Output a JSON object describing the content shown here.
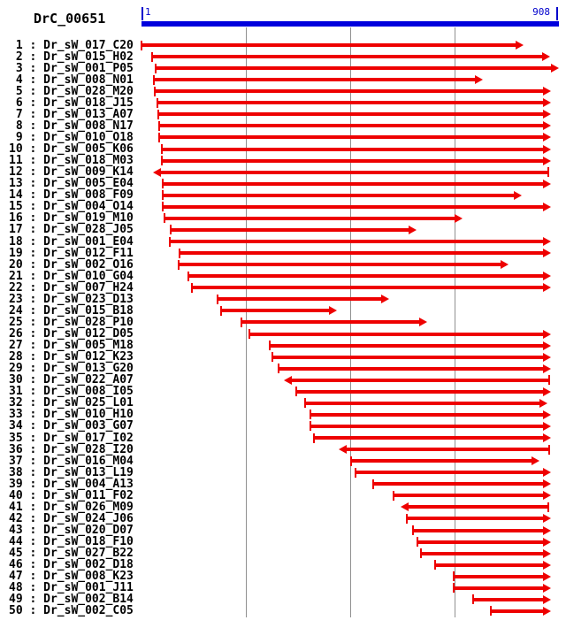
{
  "title": "DrC_00651",
  "ruler": {
    "start_label": "1",
    "end_label": "908"
  },
  "colors": {
    "arrow": "#ee0000",
    "ruler": "#0000dd",
    "ruler_text": "#0000cc",
    "grid": "#909090",
    "text": "#000000",
    "background": "#ffffff"
  },
  "chart_data": {
    "type": "span",
    "title": "DrC_00651",
    "xlabel": "",
    "ylabel": "",
    "axis": {
      "min": 1,
      "max": 908,
      "gridlines": [
        227,
        454,
        681
      ]
    },
    "reads": [
      {
        "n": 1,
        "name": "Dr_sW_017_C20",
        "start": 1,
        "end": 831,
        "dir": "fwd"
      },
      {
        "n": 2,
        "name": "Dr_sW_015_H02",
        "start": 24,
        "end": 889,
        "dir": "fwd"
      },
      {
        "n": 3,
        "name": "Dr_sW_001_P05",
        "start": 32,
        "end": 908,
        "dir": "fwd"
      },
      {
        "n": 4,
        "name": "Dr_sW_008_N01",
        "start": 28,
        "end": 743,
        "dir": "fwd"
      },
      {
        "n": 5,
        "name": "Dr_sW_028_M20",
        "start": 30,
        "end": 890,
        "dir": "fwd"
      },
      {
        "n": 6,
        "name": "Dr_sW_018_J15",
        "start": 36,
        "end": 890,
        "dir": "fwd"
      },
      {
        "n": 7,
        "name": "Dr_sW_013_A07",
        "start": 38,
        "end": 890,
        "dir": "fwd"
      },
      {
        "n": 8,
        "name": "Dr_sW_008_N17",
        "start": 39,
        "end": 890,
        "dir": "fwd"
      },
      {
        "n": 9,
        "name": "Dr_sW_010_O18",
        "start": 40,
        "end": 890,
        "dir": "fwd"
      },
      {
        "n": 10,
        "name": "Dr_sW_005_K06",
        "start": 45,
        "end": 890,
        "dir": "fwd"
      },
      {
        "n": 11,
        "name": "Dr_sW_018_M03",
        "start": 45,
        "end": 890,
        "dir": "fwd"
      },
      {
        "n": 12,
        "name": "Dr_sW_009_K14",
        "start": 26,
        "end": 885,
        "dir": "rev"
      },
      {
        "n": 13,
        "name": "Dr_sW_005_E04",
        "start": 48,
        "end": 890,
        "dir": "fwd"
      },
      {
        "n": 14,
        "name": "Dr_sW_008_F09",
        "start": 48,
        "end": 827,
        "dir": "fwd"
      },
      {
        "n": 15,
        "name": "Dr_sW_004_O14",
        "start": 48,
        "end": 890,
        "dir": "fwd"
      },
      {
        "n": 16,
        "name": "Dr_sW_019_M10",
        "start": 51,
        "end": 699,
        "dir": "fwd"
      },
      {
        "n": 17,
        "name": "Dr_sW_028_J05",
        "start": 65,
        "end": 599,
        "dir": "fwd"
      },
      {
        "n": 18,
        "name": "Dr_sW_001_E04",
        "start": 63,
        "end": 890,
        "dir": "fwd"
      },
      {
        "n": 19,
        "name": "Dr_sW_012_F11",
        "start": 83,
        "end": 890,
        "dir": "fwd"
      },
      {
        "n": 20,
        "name": "Dr_sW_002_O16",
        "start": 81,
        "end": 799,
        "dir": "fwd"
      },
      {
        "n": 21,
        "name": "Dr_sW_010_G04",
        "start": 103,
        "end": 890,
        "dir": "fwd"
      },
      {
        "n": 22,
        "name": "Dr_sW_007_H24",
        "start": 111,
        "end": 890,
        "dir": "fwd"
      },
      {
        "n": 23,
        "name": "Dr_sW_023_D13",
        "start": 166,
        "end": 539,
        "dir": "fwd"
      },
      {
        "n": 24,
        "name": "Dr_sW_015_B18",
        "start": 174,
        "end": 426,
        "dir": "fwd"
      },
      {
        "n": 25,
        "name": "Dr_sW_028_P10",
        "start": 218,
        "end": 622,
        "dir": "fwd"
      },
      {
        "n": 26,
        "name": "Dr_sW_012_D05",
        "start": 235,
        "end": 890,
        "dir": "fwd"
      },
      {
        "n": 27,
        "name": "Dr_sW_005_M18",
        "start": 280,
        "end": 890,
        "dir": "fwd"
      },
      {
        "n": 28,
        "name": "Dr_sW_012_K23",
        "start": 285,
        "end": 890,
        "dir": "fwd"
      },
      {
        "n": 29,
        "name": "Dr_sW_013_G20",
        "start": 299,
        "end": 890,
        "dir": "fwd"
      },
      {
        "n": 30,
        "name": "Dr_sW_022_A07",
        "start": 310,
        "end": 887,
        "dir": "rev"
      },
      {
        "n": 31,
        "name": "Dr_sW_008_I05",
        "start": 337,
        "end": 890,
        "dir": "fwd"
      },
      {
        "n": 32,
        "name": "Dr_sW_025_L01",
        "start": 357,
        "end": 883,
        "dir": "fwd"
      },
      {
        "n": 33,
        "name": "Dr_sW_010_H10",
        "start": 368,
        "end": 890,
        "dir": "fwd"
      },
      {
        "n": 34,
        "name": "Dr_sW_003_G07",
        "start": 368,
        "end": 890,
        "dir": "fwd"
      },
      {
        "n": 35,
        "name": "Dr_sW_017_I02",
        "start": 376,
        "end": 890,
        "dir": "fwd"
      },
      {
        "n": 36,
        "name": "Dr_sW_028_I20",
        "start": 430,
        "end": 887,
        "dir": "rev"
      },
      {
        "n": 37,
        "name": "Dr_sW_016_M04",
        "start": 456,
        "end": 866,
        "dir": "fwd"
      },
      {
        "n": 38,
        "name": "Dr_sW_013_L19",
        "start": 466,
        "end": 890,
        "dir": "fwd"
      },
      {
        "n": 39,
        "name": "Dr_sW_004_A13",
        "start": 504,
        "end": 890,
        "dir": "fwd"
      },
      {
        "n": 40,
        "name": "Dr_sW_011_F02",
        "start": 549,
        "end": 890,
        "dir": "fwd"
      },
      {
        "n": 41,
        "name": "Dr_sW_026_M09",
        "start": 564,
        "end": 885,
        "dir": "rev"
      },
      {
        "n": 42,
        "name": "Dr_sW_024_J06",
        "start": 578,
        "end": 890,
        "dir": "fwd"
      },
      {
        "n": 43,
        "name": "Dr_sW_020_D07",
        "start": 591,
        "end": 890,
        "dir": "fwd"
      },
      {
        "n": 44,
        "name": "Dr_sW_018_F10",
        "start": 601,
        "end": 890,
        "dir": "fwd"
      },
      {
        "n": 45,
        "name": "Dr_sW_027_B22",
        "start": 608,
        "end": 890,
        "dir": "fwd"
      },
      {
        "n": 46,
        "name": "Dr_sW_002_D18",
        "start": 639,
        "end": 890,
        "dir": "fwd"
      },
      {
        "n": 47,
        "name": "Dr_sW_008_K23",
        "start": 679,
        "end": 890,
        "dir": "fwd"
      },
      {
        "n": 48,
        "name": "Dr_sW_001_J11",
        "start": 679,
        "end": 890,
        "dir": "fwd"
      },
      {
        "n": 49,
        "name": "Dr_sW_002_B14",
        "start": 722,
        "end": 890,
        "dir": "fwd"
      },
      {
        "n": 50,
        "name": "Dr_sW_002_C05",
        "start": 760,
        "end": 890,
        "dir": "fwd"
      }
    ]
  }
}
